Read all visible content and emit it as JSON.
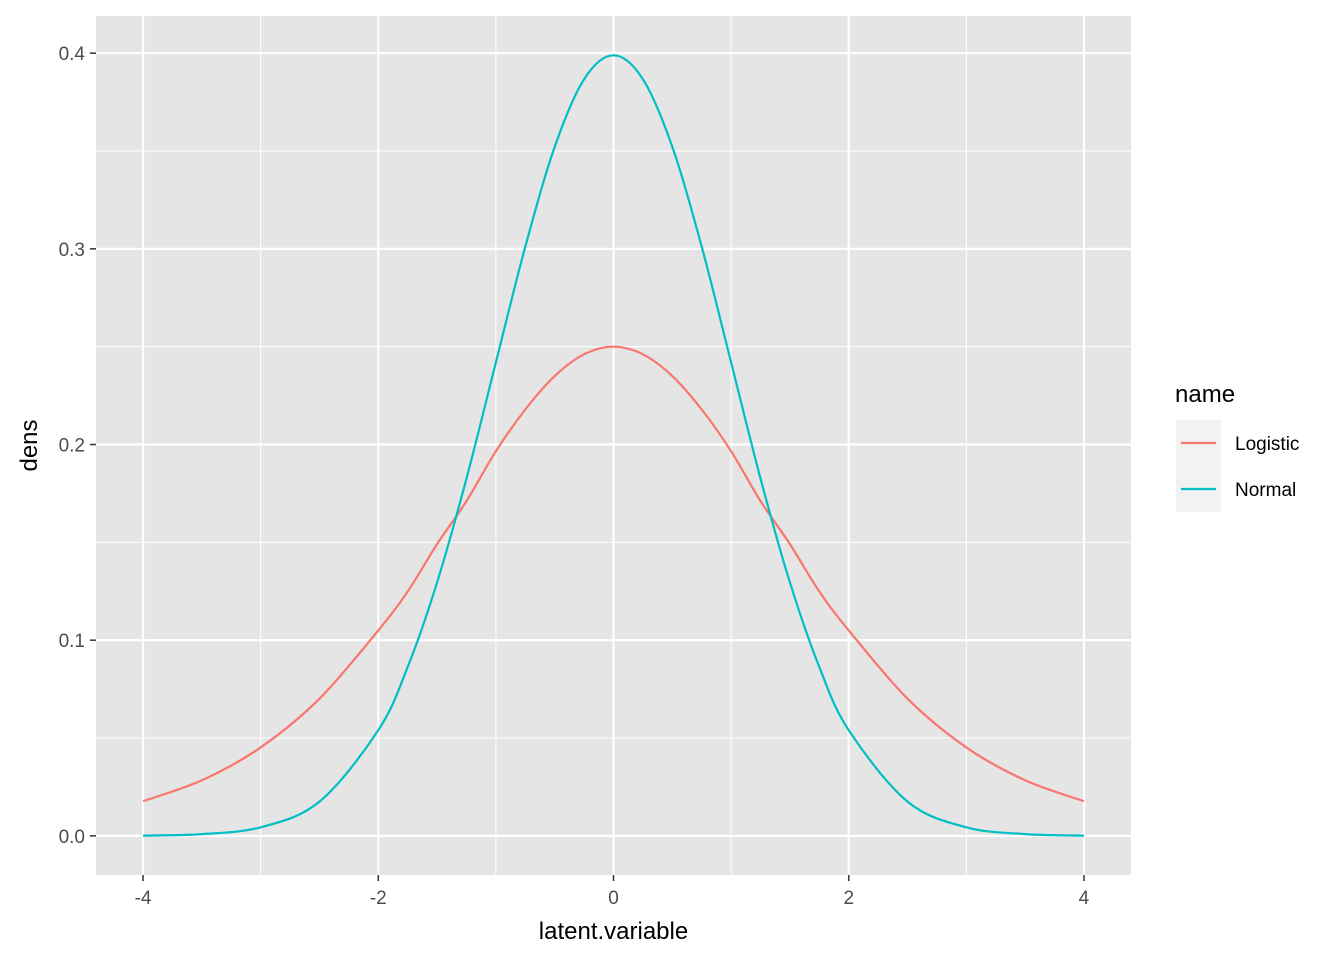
{
  "chart_data": {
    "type": "line",
    "xlabel": "latent.variable",
    "ylabel": "dens",
    "xlim": [
      -4.4,
      4.4
    ],
    "ylim": [
      -0.02,
      0.419
    ],
    "x_ticks": [
      -4,
      -2,
      0,
      2,
      4
    ],
    "x_tick_labels": [
      "-4",
      "-2",
      "0",
      "2",
      "4"
    ],
    "y_ticks": [
      0.0,
      0.1,
      0.2,
      0.3,
      0.4
    ],
    "y_tick_labels": [
      "0.0",
      "0.1",
      "0.2",
      "0.3",
      "0.4"
    ],
    "grid": true,
    "panel_background": "#e5e5e5",
    "grid_color": "#ffffff",
    "legend": {
      "title": "name",
      "placement": "right"
    },
    "series": [
      {
        "name": "Logistic",
        "color": "#f8766d",
        "x": [
          -4,
          -3.5,
          -3,
          -2.5,
          -2,
          -1.75,
          -1.5,
          -1.25,
          -1,
          -0.75,
          -0.5,
          -0.25,
          0,
          0.25,
          0.5,
          0.75,
          1,
          1.25,
          1.5,
          1.75,
          2,
          2.5,
          3,
          3.5,
          4
        ],
        "y": [
          0.0177,
          0.0284,
          0.0452,
          0.0701,
          0.105,
          0.1249,
          0.1491,
          0.1711,
          0.1966,
          0.2179,
          0.235,
          0.2461,
          0.25,
          0.2461,
          0.235,
          0.2179,
          0.1966,
          0.1711,
          0.1491,
          0.1249,
          0.105,
          0.0701,
          0.0452,
          0.0284,
          0.0177
        ]
      },
      {
        "name": "Normal",
        "color": "#00bfc4",
        "x": [
          -4,
          -3.5,
          -3,
          -2.5,
          -2,
          -1.75,
          -1.5,
          -1.25,
          -1,
          -0.75,
          -0.5,
          -0.25,
          0,
          0.25,
          0.5,
          0.75,
          1,
          1.25,
          1.5,
          1.75,
          2,
          2.5,
          3,
          3.5,
          4
        ],
        "y": [
          0.0001,
          0.0009,
          0.0044,
          0.0175,
          0.054,
          0.0863,
          0.1295,
          0.1826,
          0.242,
          0.3011,
          0.3521,
          0.3867,
          0.3989,
          0.3867,
          0.3521,
          0.3011,
          0.242,
          0.1826,
          0.1295,
          0.0863,
          0.054,
          0.0175,
          0.0044,
          0.0009,
          0.0001
        ]
      }
    ]
  }
}
